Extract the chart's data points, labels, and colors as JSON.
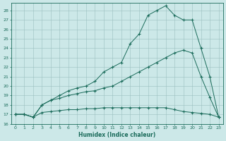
{
  "xlabel": "Humidex (Indice chaleur)",
  "background_color": "#cce8e8",
  "line_color": "#1a6b5a",
  "grid_color": "#9bbfbf",
  "xlim": [
    -0.5,
    23.5
  ],
  "ylim": [
    16.0,
    28.8
  ],
  "yticks": [
    16,
    17,
    18,
    19,
    20,
    21,
    22,
    23,
    24,
    25,
    26,
    27,
    28
  ],
  "xticks": [
    0,
    1,
    2,
    3,
    4,
    5,
    6,
    7,
    8,
    9,
    10,
    11,
    12,
    13,
    14,
    15,
    16,
    17,
    18,
    19,
    20,
    21,
    22,
    23
  ],
  "curve_min_x": [
    0,
    1,
    2,
    3,
    4,
    5,
    6,
    7,
    8,
    9,
    10,
    11,
    12,
    13,
    14,
    15,
    16,
    17,
    18,
    19,
    20,
    21,
    22,
    23
  ],
  "curve_min_y": [
    17.0,
    17.0,
    16.7,
    17.2,
    17.3,
    17.4,
    17.5,
    17.5,
    17.6,
    17.6,
    17.7,
    17.7,
    17.7,
    17.7,
    17.7,
    17.7,
    17.7,
    17.7,
    17.5,
    17.3,
    17.2,
    17.1,
    17.0,
    16.7
  ],
  "curve_mid_x": [
    0,
    1,
    2,
    3,
    4,
    5,
    6,
    7,
    8,
    9,
    10,
    11,
    12,
    13,
    14,
    15,
    16,
    17,
    18,
    19,
    20,
    21,
    22,
    23
  ],
  "curve_mid_y": [
    17.0,
    17.0,
    16.7,
    18.0,
    18.5,
    18.7,
    19.0,
    19.2,
    19.4,
    19.5,
    19.8,
    20.0,
    20.5,
    21.0,
    21.5,
    22.0,
    22.5,
    23.0,
    23.5,
    23.8,
    23.5,
    21.0,
    18.8,
    16.7
  ],
  "curve_max_x": [
    0,
    1,
    2,
    3,
    4,
    5,
    6,
    7,
    8,
    9,
    10,
    11,
    12,
    13,
    14,
    15,
    16,
    17,
    18,
    19,
    20,
    21,
    22,
    23
  ],
  "curve_max_y": [
    17.0,
    17.0,
    16.7,
    18.0,
    18.5,
    19.0,
    19.5,
    19.8,
    20.0,
    20.5,
    21.5,
    22.0,
    22.5,
    24.5,
    25.5,
    27.5,
    28.0,
    28.5,
    27.5,
    27.0,
    27.0,
    24.0,
    21.0,
    16.7
  ]
}
